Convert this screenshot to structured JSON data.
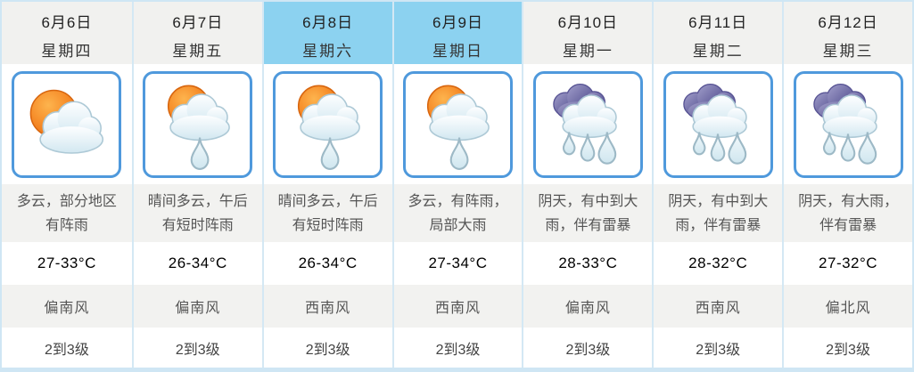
{
  "board": {
    "highlight_color": "#8cd2f0",
    "accent_border_color": "#4f99dc",
    "days": [
      {
        "date": "6月6日",
        "weekday": "星期四",
        "highlighted": false,
        "icon": "sun-cloud-icon",
        "description": "多云，部分地区有阵雨",
        "temperature": "27-33°C",
        "wind_direction": "偏南风",
        "wind_level": "2到3级"
      },
      {
        "date": "6月7日",
        "weekday": "星期五",
        "highlighted": false,
        "icon": "sun-cloud-rain-icon",
        "description": "晴间多云，午后有短时阵雨",
        "temperature": "26-34°C",
        "wind_direction": "偏南风",
        "wind_level": "2到3级"
      },
      {
        "date": "6月8日",
        "weekday": "星期六",
        "highlighted": true,
        "icon": "sun-cloud-rain-icon",
        "description": "晴间多云，午后有短时阵雨",
        "temperature": "26-34°C",
        "wind_direction": "西南风",
        "wind_level": "2到3级"
      },
      {
        "date": "6月9日",
        "weekday": "星期日",
        "highlighted": true,
        "icon": "sun-cloud-rain-icon",
        "description": "多云，有阵雨，局部大雨",
        "temperature": "27-34°C",
        "wind_direction": "西南风",
        "wind_level": "2到3级"
      },
      {
        "date": "6月10日",
        "weekday": "星期一",
        "highlighted": false,
        "icon": "dark-cloud-heavy-rain-icon",
        "description": "阴天，有中到大雨，伴有雷暴",
        "temperature": "28-33°C",
        "wind_direction": "偏南风",
        "wind_level": "2到3级"
      },
      {
        "date": "6月11日",
        "weekday": "星期二",
        "highlighted": false,
        "icon": "dark-cloud-heavy-rain-icon",
        "description": "阴天，有中到大雨，伴有雷暴",
        "temperature": "28-32°C",
        "wind_direction": "西南风",
        "wind_level": "2到3级"
      },
      {
        "date": "6月12日",
        "weekday": "星期三",
        "highlighted": false,
        "icon": "dark-cloud-heavy-rain-icon",
        "description": "阴天，有大雨，伴有雷暴",
        "temperature": "27-32°C",
        "wind_direction": "偏北风",
        "wind_level": "2到3级"
      }
    ]
  }
}
